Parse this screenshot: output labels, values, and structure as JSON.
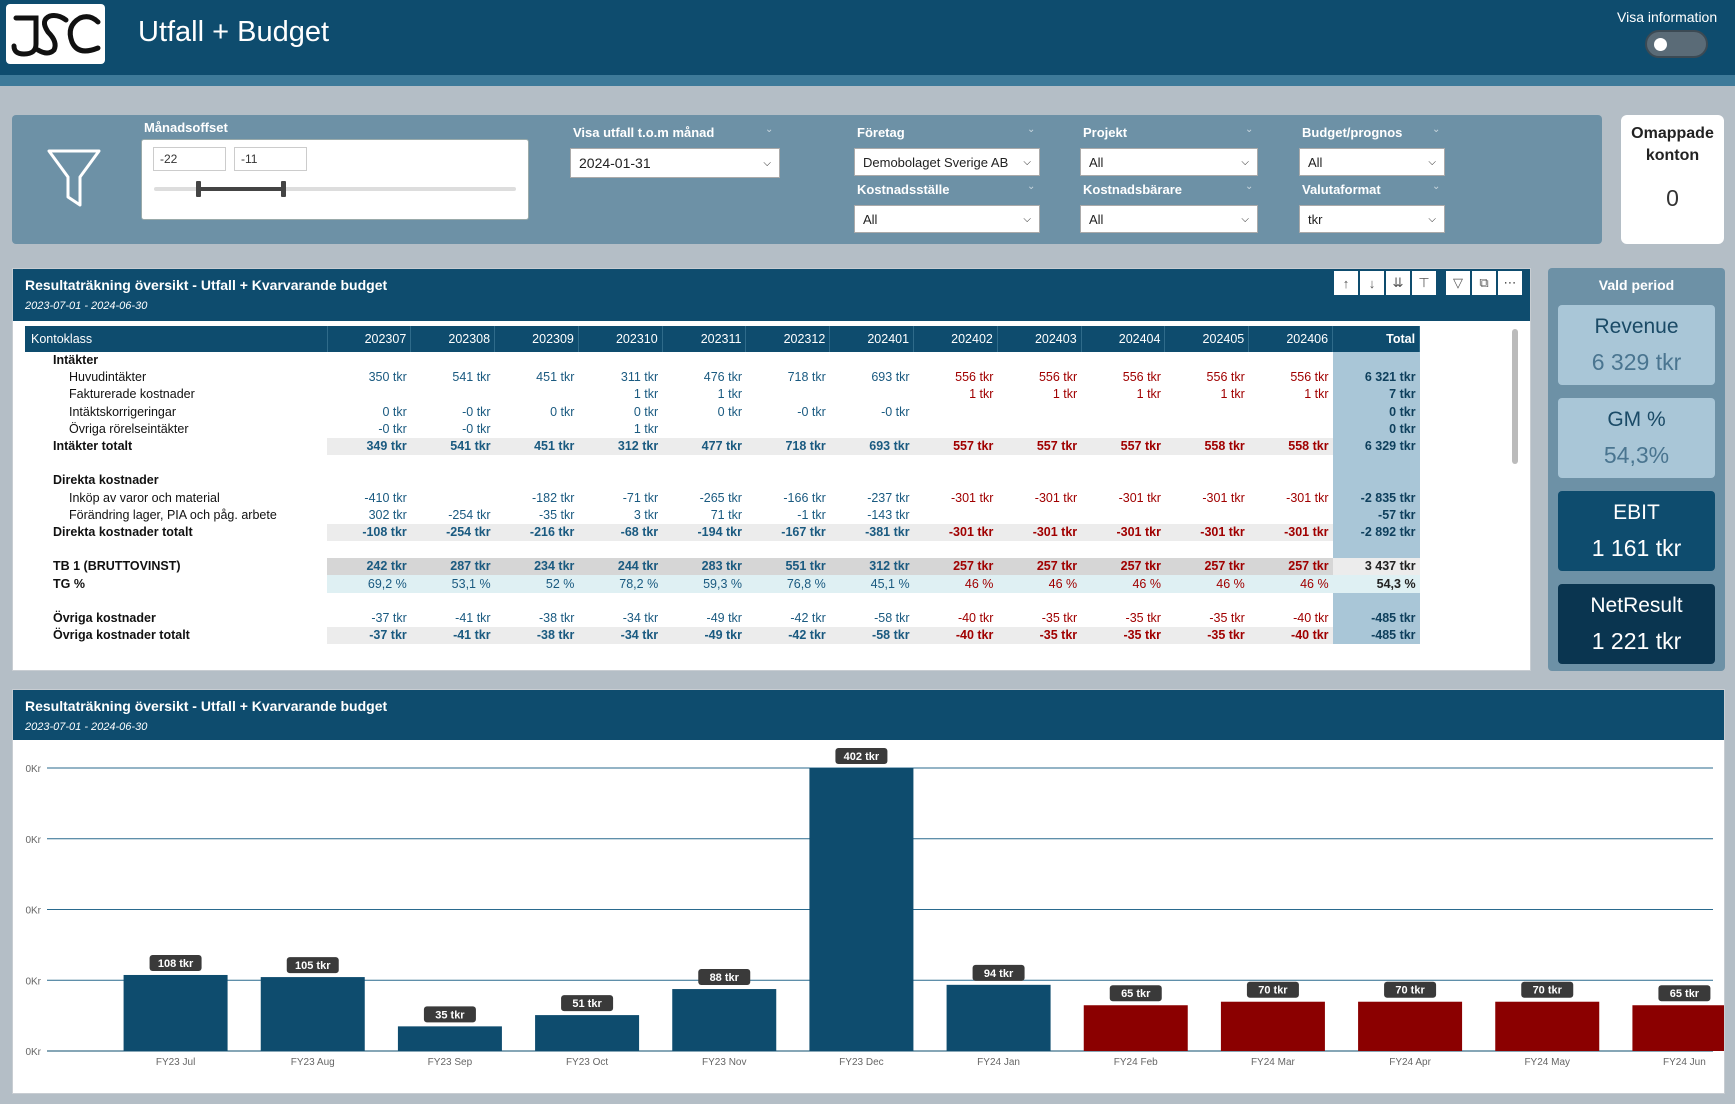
{
  "header": {
    "logo_text": "JSC",
    "title": "Utfall + Budget",
    "info_toggle_label": "Visa information"
  },
  "filters": {
    "month_offset": {
      "title": "Månadsoffset",
      "from": "-22",
      "to": "-11"
    },
    "show_through": {
      "title": "Visa utfall t.o.m månad",
      "value": "2024-01-31"
    },
    "company": {
      "title": "Företag",
      "value": "Demobolaget Sverige AB"
    },
    "cost_center": {
      "title": "Kostnadsställe",
      "value": "All"
    },
    "project": {
      "title": "Projekt",
      "value": "All"
    },
    "cost_unit": {
      "title": "Kostnadsbärare",
      "value": "All"
    },
    "budget": {
      "title": "Budget/prognos",
      "value": "All"
    },
    "currency": {
      "title": "Valutaformat",
      "value": "tkr"
    }
  },
  "omappade": {
    "title_line1": "Omappade",
    "title_line2": "konton",
    "value": "0"
  },
  "matrix": {
    "title": "Resultaträkning översikt - Utfall + Kvarvarande budget",
    "period": "2023-07-01 - 2024-06-30",
    "first_col": "Kontoklass",
    "months": [
      "202307",
      "202308",
      "202309",
      "202310",
      "202311",
      "202312",
      "202401",
      "202402",
      "202403",
      "202404",
      "202405",
      "202406"
    ],
    "total_label": "Total",
    "actual_month_count": 7,
    "rows": [
      {
        "type": "group",
        "label": "Intäkter",
        "cells": [
          "",
          "",
          "",
          "",
          "",
          "",
          "",
          "",
          "",
          "",
          "",
          "",
          ""
        ]
      },
      {
        "type": "item",
        "label": "Huvudintäkter",
        "cells": [
          "350 tkr",
          "541 tkr",
          "451 tkr",
          "311 tkr",
          "476 tkr",
          "718 tkr",
          "693 tkr",
          "556 tkr",
          "556 tkr",
          "556 tkr",
          "556 tkr",
          "556 tkr",
          "6 321 tkr"
        ]
      },
      {
        "type": "item",
        "label": "Fakturerade kostnader",
        "cells": [
          "",
          "",
          "",
          "1 tkr",
          "1 tkr",
          "",
          "",
          "1 tkr",
          "1 tkr",
          "1 tkr",
          "1 tkr",
          "1 tkr",
          "7 tkr"
        ]
      },
      {
        "type": "item",
        "label": "Intäktskorrigeringar",
        "cells": [
          "0 tkr",
          "-0 tkr",
          "0 tkr",
          "0 tkr",
          "0 tkr",
          "-0 tkr",
          "-0 tkr",
          "",
          "",
          "",
          "",
          "",
          "0 tkr"
        ]
      },
      {
        "type": "item",
        "label": "Övriga rörelseintäkter",
        "cells": [
          "-0 tkr",
          "-0 tkr",
          "",
          "1 tkr",
          "",
          "",
          "",
          "",
          "",
          "",
          "",
          "",
          "0 tkr"
        ]
      },
      {
        "type": "total",
        "label": "Intäkter totalt",
        "cells": [
          "349 tkr",
          "541 tkr",
          "451 tkr",
          "312 tkr",
          "477 tkr",
          "718 tkr",
          "693 tkr",
          "557 tkr",
          "557 tkr",
          "557 tkr",
          "558 tkr",
          "558 tkr",
          "6 329 tkr"
        ]
      },
      {
        "type": "blank",
        "label": "",
        "cells": [
          "",
          "",
          "",
          "",
          "",
          "",
          "",
          "",
          "",
          "",
          "",
          "",
          ""
        ]
      },
      {
        "type": "group",
        "label": "Direkta kostnader",
        "cells": [
          "",
          "",
          "",
          "",
          "",
          "",
          "",
          "",
          "",
          "",
          "",
          "",
          ""
        ]
      },
      {
        "type": "item",
        "label": "Inköp av varor och material",
        "cells": [
          "-410 tkr",
          "",
          "-182 tkr",
          "-71 tkr",
          "-265 tkr",
          "-166 tkr",
          "-237 tkr",
          "-301 tkr",
          "-301 tkr",
          "-301 tkr",
          "-301 tkr",
          "-301 tkr",
          "-2 835 tkr"
        ]
      },
      {
        "type": "item",
        "label": "Förändring lager, PIA och påg. arbete",
        "cells": [
          "302 tkr",
          "-254 tkr",
          "-35 tkr",
          "3 tkr",
          "71 tkr",
          "-1 tkr",
          "-143 tkr",
          "",
          "",
          "",
          "",
          "",
          "-57 tkr"
        ]
      },
      {
        "type": "total",
        "label": "Direkta kostnader totalt",
        "cells": [
          "-108 tkr",
          "-254 tkr",
          "-216 tkr",
          "-68 tkr",
          "-194 tkr",
          "-167 tkr",
          "-381 tkr",
          "-301 tkr",
          "-301 tkr",
          "-301 tkr",
          "-301 tkr",
          "-301 tkr",
          "-2 892 tkr"
        ]
      },
      {
        "type": "blank",
        "label": "",
        "cells": [
          "",
          "",
          "",
          "",
          "",
          "",
          "",
          "",
          "",
          "",
          "",
          "",
          ""
        ]
      },
      {
        "type": "tb1",
        "label": "TB 1 (BRUTTOVINST)",
        "cells": [
          "242 tkr",
          "287 tkr",
          "234 tkr",
          "244 tkr",
          "283 tkr",
          "551 tkr",
          "312 tkr",
          "257 tkr",
          "257 tkr",
          "257 tkr",
          "257 tkr",
          "257 tkr",
          "3 437 tkr"
        ]
      },
      {
        "type": "tg",
        "label": "TG %",
        "cells": [
          "69,2 %",
          "53,1 %",
          "52 %",
          "78,2 %",
          "59,3 %",
          "76,8 %",
          "45,1 %",
          "46 %",
          "46 %",
          "46 %",
          "46 %",
          "46 %",
          "54,3 %"
        ]
      },
      {
        "type": "blank",
        "label": "",
        "cells": [
          "",
          "",
          "",
          "",
          "",
          "",
          "",
          "",
          "",
          "",
          "",
          "",
          ""
        ]
      },
      {
        "type": "group2",
        "label": "Övriga kostnader",
        "cells": [
          "-37 tkr",
          "-41 tkr",
          "-38 tkr",
          "-34 tkr",
          "-49 tkr",
          "-42 tkr",
          "-58 tkr",
          "-40 tkr",
          "-35 tkr",
          "-35 tkr",
          "-35 tkr",
          "-40 tkr",
          "-485 tkr"
        ]
      },
      {
        "type": "total",
        "label": "Övriga kostnader totalt",
        "cells": [
          "-37 tkr",
          "-41 tkr",
          "-38 tkr",
          "-34 tkr",
          "-49 tkr",
          "-42 tkr",
          "-58 tkr",
          "-40 tkr",
          "-35 tkr",
          "-35 tkr",
          "-35 tkr",
          "-40 tkr",
          "-485 tkr"
        ]
      }
    ]
  },
  "kpis": {
    "panel_title": "Vald period",
    "items": [
      {
        "label": "Revenue",
        "value": "6 329 tkr",
        "bg": "#a9c6d7",
        "fg": "#1a4a66",
        "vfg": "#4a7590"
      },
      {
        "label": "GM %",
        "value": "54,3%",
        "bg": "#a9c6d7",
        "fg": "#1a4a66",
        "vfg": "#4a7590"
      },
      {
        "label": "EBIT",
        "value": "1 161 tkr",
        "bg": "#0e4c6e",
        "fg": "#ffffff",
        "vfg": "#ffffff"
      },
      {
        "label": "NetResult",
        "value": "1 221 tkr",
        "bg": "#0a3550",
        "fg": "#ffffff",
        "vfg": "#ffffff"
      }
    ]
  },
  "chart": {
    "title": "Resultaträkning översikt - Utfall + Kvarvarande budget",
    "period": "2023-07-01 - 2024-06-30"
  },
  "chart_data": {
    "type": "bar",
    "categories": [
      "FY23 Jul",
      "FY23 Aug",
      "FY23 Sep",
      "FY23 Oct",
      "FY23 Nov",
      "FY23 Dec",
      "FY24 Jan",
      "FY24 Feb",
      "FY24 Mar",
      "FY24 Apr",
      "FY24 May",
      "FY24 Jun"
    ],
    "values": [
      108,
      105,
      35,
      51,
      88,
      402,
      94,
      65,
      70,
      70,
      70,
      65
    ],
    "labels": [
      "108 tkr",
      "105 tkr",
      "35 tkr",
      "51 tkr",
      "88 tkr",
      "402 tkr",
      "94 tkr",
      "65 tkr",
      "70 tkr",
      "70 tkr",
      "70 tkr",
      "65 tkr"
    ],
    "y_tick_labels": [
      "0Kr",
      "0Kr",
      "0Kr",
      "0Kr",
      "0Kr"
    ],
    "ylim": [
      0,
      402
    ],
    "colors": {
      "actual": "#0e4c6e",
      "budget": "#8b0000"
    },
    "actual_count": 7,
    "grid": true
  }
}
